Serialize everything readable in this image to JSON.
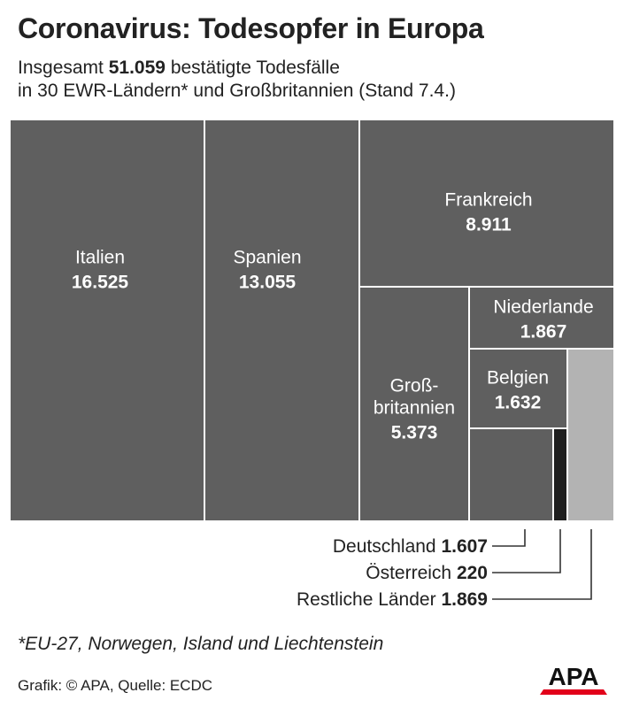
{
  "header": {
    "title": "Coronavirus: Todesopfer in Europa",
    "subtitle_prefix": "Insgesamt",
    "subtitle_total": "51.059",
    "subtitle_suffix": "bestätigte Todesfälle",
    "subtitle_line2": "in 30 EWR-Ländern* und Großbritannien (Stand 7.4.)"
  },
  "chart_data": {
    "type": "treemap",
    "title": "Coronavirus: Todesopfer in Europa",
    "total": 51059,
    "colors": {
      "tile": "#5f5f5f",
      "austria": "#1e1e1e",
      "rest": "#b3b3b3",
      "border": "#ffffff",
      "label": "#ffffff",
      "leader": "#333333"
    },
    "tiles": [
      {
        "id": "italien",
        "label": "Italien",
        "value": 16525,
        "value_label": "16.525",
        "label_position": "inside"
      },
      {
        "id": "spanien",
        "label": "Spanien",
        "value": 13055,
        "value_label": "13.055",
        "label_position": "inside"
      },
      {
        "id": "frankreich",
        "label": "Frankreich",
        "value": 8911,
        "value_label": "8.911",
        "label_position": "inside"
      },
      {
        "id": "grossbritannien",
        "label": "Groß-|britannien",
        "value": 5373,
        "value_label": "5.373",
        "label_position": "inside"
      },
      {
        "id": "niederlande",
        "label": "Niederlande",
        "value": 1867,
        "value_label": "1.867",
        "label_position": "inside"
      },
      {
        "id": "belgien",
        "label": "Belgien",
        "value": 1632,
        "value_label": "1.632",
        "label_position": "inside"
      },
      {
        "id": "deutschland",
        "label": "Deutschland",
        "value": 1607,
        "value_label": "1.607",
        "label_position": "outside"
      },
      {
        "id": "oesterreich",
        "label": "Österreich",
        "value": 220,
        "value_label": "220",
        "label_position": "outside"
      },
      {
        "id": "restliche",
        "label": "Restliche Länder",
        "value": 1869,
        "value_label": "1.869",
        "label_position": "outside"
      }
    ]
  },
  "footer": {
    "footnote": "*EU-27, Norwegen, Island und Liechtenstein",
    "source": "Grafik: © APA, Quelle: ECDC",
    "logo_text": "APA"
  }
}
